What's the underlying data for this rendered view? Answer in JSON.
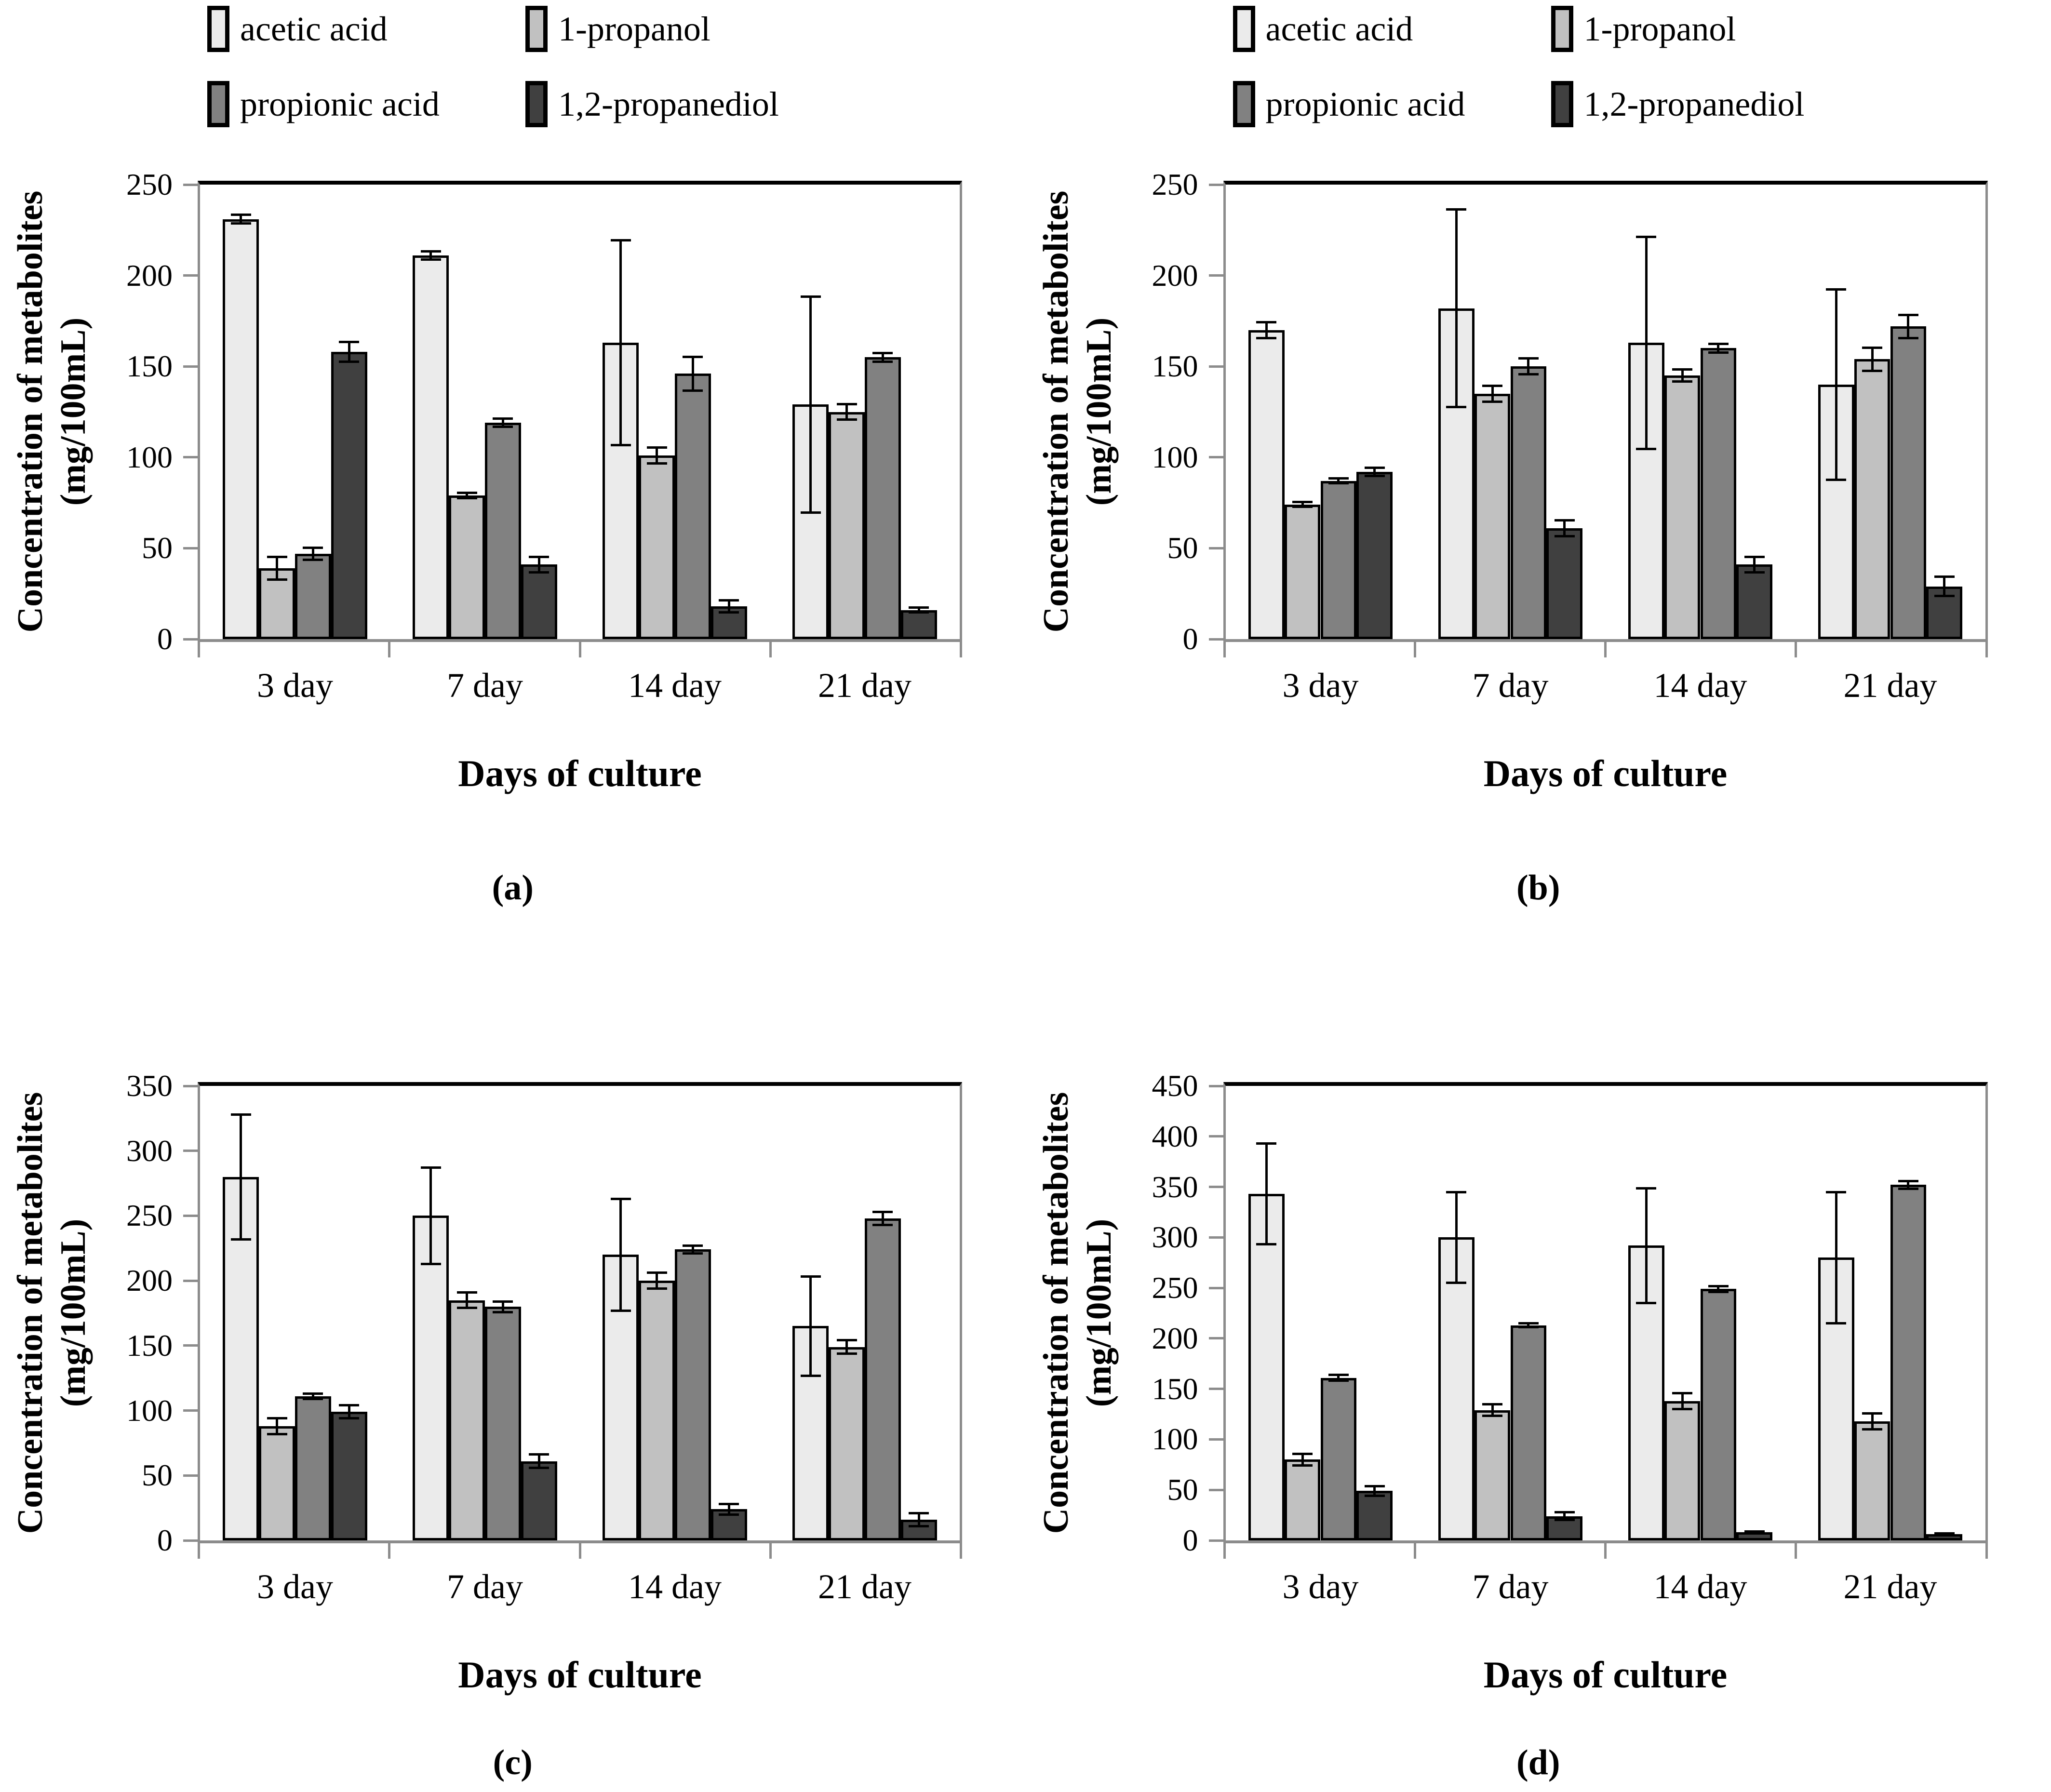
{
  "figure": {
    "ylabel": "Concentration of metabolites\n(mg/100mL)",
    "xlabel": "Days of culture",
    "categories": [
      "3 day",
      "7 day",
      "14 day",
      "21 day"
    ],
    "series_names": [
      "acetic acid",
      "1-propanol",
      "propionic acid",
      "1,2-propanediol"
    ],
    "series_colors": [
      "#ebebeb",
      "#c1c1c1",
      "#818181",
      "#404040"
    ],
    "axis_color": "#8c8c8c",
    "frame_top_color": "#000000",
    "error_bar_color": "#000000"
  },
  "chart_data": [
    {
      "id": "a",
      "caption": "(a)",
      "type": "bar",
      "legend": true,
      "legend_entries": [
        "acetic acid",
        "1-propanol",
        "propionic acid",
        "1,2-propanediol"
      ],
      "categories": [
        "3 day",
        "7 day",
        "14 day",
        "21 day"
      ],
      "xlabel": "Days of culture",
      "ylabel": "Concentration of metabolites (mg/100mL)",
      "ylim": [
        0,
        250
      ],
      "yticks": [
        0,
        50,
        100,
        150,
        200,
        250
      ],
      "grid": false,
      "series": [
        {
          "name": "acetic acid",
          "values": [
            231,
            211,
            163,
            129
          ],
          "errors": [
            3,
            3,
            57,
            60
          ]
        },
        {
          "name": "1-propanol",
          "values": [
            39,
            79,
            101,
            125
          ],
          "errors": [
            7,
            2,
            5,
            5
          ]
        },
        {
          "name": "propionic acid",
          "values": [
            47,
            119,
            146,
            155
          ],
          "errors": [
            4,
            3,
            10,
            3
          ]
        },
        {
          "name": "1,2-propanediol",
          "values": [
            158,
            41,
            18,
            16
          ],
          "errors": [
            6,
            5,
            4,
            2
          ]
        }
      ]
    },
    {
      "id": "b",
      "caption": "(b)",
      "type": "bar",
      "legend": true,
      "legend_entries": [
        "acetic acid",
        "1-propanol",
        "propionic acid",
        "1,2-propanediol"
      ],
      "categories": [
        "3 day",
        "7 day",
        "14 day",
        "21 day"
      ],
      "xlabel": "Days of culture",
      "ylabel": "Concentration of metabolites (mg/100mL)",
      "ylim": [
        0,
        250
      ],
      "yticks": [
        0,
        50,
        100,
        150,
        200,
        250
      ],
      "grid": false,
      "series": [
        {
          "name": "acetic acid",
          "values": [
            170,
            182,
            163,
            140
          ],
          "errors": [
            5,
            55,
            59,
            53
          ]
        },
        {
          "name": "1-propanol",
          "values": [
            74,
            135,
            145,
            154
          ],
          "errors": [
            2,
            5,
            4,
            7
          ]
        },
        {
          "name": "propionic acid",
          "values": [
            87,
            150,
            160,
            172
          ],
          "errors": [
            2,
            5,
            3,
            7
          ]
        },
        {
          "name": "1,2-propanediol",
          "values": [
            92,
            61,
            41,
            29
          ],
          "errors": [
            3,
            5,
            5,
            6
          ]
        }
      ]
    },
    {
      "id": "c",
      "caption": "(c)",
      "type": "bar",
      "legend": false,
      "categories": [
        "3 day",
        "7 day",
        "14 day",
        "21 day"
      ],
      "xlabel": "Days of culture",
      "ylabel": "Concentration of metabolites (mg/100mL)",
      "ylim": [
        0,
        350
      ],
      "yticks": [
        0,
        50,
        100,
        150,
        200,
        250,
        300,
        350
      ],
      "grid": false,
      "series": [
        {
          "name": "acetic acid",
          "values": [
            280,
            250,
            220,
            165
          ],
          "errors": [
            49,
            38,
            44,
            39
          ]
        },
        {
          "name": "1-propanol",
          "values": [
            88,
            185,
            200,
            149
          ],
          "errors": [
            7,
            7,
            7,
            6
          ]
        },
        {
          "name": "propionic acid",
          "values": [
            111,
            180,
            224,
            248
          ],
          "errors": [
            3,
            5,
            4,
            6
          ]
        },
        {
          "name": "1,2-propanediol",
          "values": [
            99,
            61,
            24,
            16
          ],
          "errors": [
            6,
            6,
            5,
            6
          ]
        }
      ]
    },
    {
      "id": "d",
      "caption": "(d)",
      "type": "bar",
      "legend": false,
      "categories": [
        "3 day",
        "7 day",
        "14 day",
        "21 day"
      ],
      "xlabel": "Days of culture",
      "ylabel": "Concentration of metabolites (mg/100mL)",
      "ylim": [
        0,
        450
      ],
      "yticks": [
        0,
        50,
        100,
        150,
        200,
        250,
        300,
        350,
        400,
        450
      ],
      "grid": false,
      "series": [
        {
          "name": "acetic acid",
          "values": [
            343,
            300,
            292,
            280
          ],
          "errors": [
            51,
            46,
            58,
            66
          ]
        },
        {
          "name": "1-propanol",
          "values": [
            80,
            129,
            138,
            118
          ],
          "errors": [
            7,
            7,
            9,
            9
          ]
        },
        {
          "name": "propionic acid",
          "values": [
            161,
            213,
            249,
            352
          ],
          "errors": [
            4,
            3,
            4,
            5
          ]
        },
        {
          "name": "1,2-propanediol",
          "values": [
            49,
            24,
            8,
            6
          ],
          "errors": [
            6,
            5,
            2,
            2
          ]
        }
      ]
    }
  ]
}
